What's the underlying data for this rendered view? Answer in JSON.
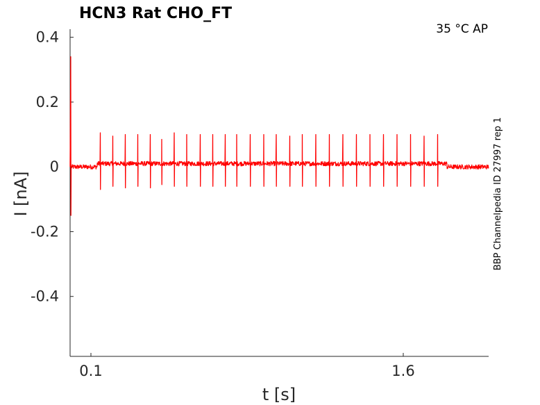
{
  "chart_data": {
    "type": "line",
    "title": "HCN3  Rat  CHO_FT",
    "annotation": "35 °C  AP",
    "side_label": "BBP Channelpedia ID 27997 rep 1",
    "xlabel": "t [s]",
    "ylabel": "I [nA]",
    "xlim": [
      0.0,
      2.01
    ],
    "ylim": [
      -0.585,
      0.425
    ],
    "xticks": [
      0.1,
      1.6
    ],
    "xtick_labels": [
      "0.1",
      "1.6"
    ],
    "yticks": [
      0.4,
      0.2,
      0,
      -0.2,
      -0.4
    ],
    "ytick_labels": [
      "0.4",
      "0.2",
      "0",
      "-0.2",
      "-0.4"
    ],
    "grid": false,
    "line_color": "#ff0000",
    "series": [
      {
        "baseline_before": 0.0,
        "baseline_during": 0.01,
        "baseline_after": 0.0,
        "stim_start": 0.13,
        "stim_end": 1.81,
        "artifact": {
          "t": 0.003,
          "max": 0.34,
          "min": -0.15
        },
        "spike_times": [
          0.145,
          0.205,
          0.265,
          0.325,
          0.385,
          0.44,
          0.5,
          0.56,
          0.625,
          0.685,
          0.745,
          0.8,
          0.865,
          0.93,
          0.99,
          1.055,
          1.115,
          1.18,
          1.245,
          1.31,
          1.375,
          1.44,
          1.505,
          1.57,
          1.635,
          1.7,
          1.765
        ],
        "spike_peaks": [
          0.105,
          0.095,
          0.1,
          0.1,
          0.1,
          0.085,
          0.105,
          0.1,
          0.1,
          0.1,
          0.1,
          0.1,
          0.1,
          0.1,
          0.1,
          0.095,
          0.1,
          0.1,
          0.1,
          0.1,
          0.1,
          0.1,
          0.1,
          0.1,
          0.1,
          0.095,
          0.1
        ],
        "spike_troughs": [
          -0.07,
          -0.06,
          -0.065,
          -0.06,
          -0.065,
          -0.055,
          -0.06,
          -0.06,
          -0.06,
          -0.06,
          -0.06,
          -0.06,
          -0.06,
          -0.06,
          -0.06,
          -0.06,
          -0.06,
          -0.06,
          -0.06,
          -0.06,
          -0.06,
          -0.06,
          -0.06,
          -0.06,
          -0.06,
          -0.06,
          -0.06
        ]
      }
    ]
  }
}
